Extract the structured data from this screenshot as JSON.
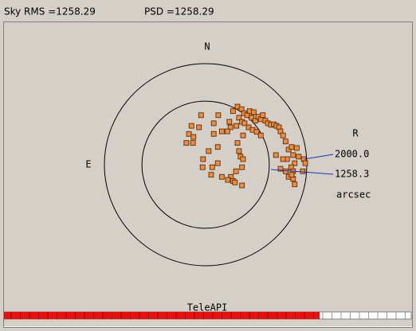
{
  "header": {
    "sky_rms": "Sky RMS =1258.29",
    "psd": "PSD =1258.29"
  },
  "plot": {
    "north": "N",
    "east": "E",
    "r_label": "R",
    "unit": "arcsec",
    "footer": "TeleAPI",
    "rings": [
      {
        "value": 2000,
        "label": "2000.0"
      },
      {
        "value": 1258.3,
        "label": "1258.3"
      }
    ],
    "points": {
      "x": [
        630,
        710,
        540,
        760,
        820,
        870,
        950,
        910,
        980,
        1040,
        1090,
        1130,
        1180,
        1230,
        1290,
        1350,
        1400,
        1450,
        1480,
        660,
        720,
        610,
        770,
        850,
        930,
        1010,
        1090,
        470,
        490,
        430,
        740,
        630,
        660,
        690,
        740,
        720,
        600,
        500,
        440,
        540,
        720,
        580,
        320,
        110,
        240,
        130,
        -50,
        -60,
        60,
        160,
        250,
        320,
        160,
        -130,
        -280,
        -330,
        -240,
        -380,
        -250,
        -90,
        240,
        1530,
        1580,
        1640,
        1700,
        1730,
        1800,
        1840,
        1760,
        1690,
        1610,
        1530,
        1480,
        1580,
        1640,
        1730,
        1760,
        1730,
        1920,
        1940,
        1970,
        1390,
        1700
      ],
      "y": [
        1150,
        1100,
        1060,
        1020,
        980,
        1060,
        1040,
        930,
        870,
        950,
        900,
        980,
        870,
        820,
        790,
        800,
        770,
        740,
        660,
        930,
        850,
        770,
        820,
        740,
        690,
        650,
        580,
        850,
        740,
        660,
        580,
        430,
        270,
        160,
        110,
        -50,
        -130,
        -240,
        -300,
        -320,
        -410,
        -350,
        -240,
        -200,
        30,
        -50,
        110,
        -50,
        270,
        820,
        980,
        660,
        610,
        740,
        770,
        610,
        550,
        430,
        430,
        980,
        350,
        580,
        460,
        300,
        350,
        190,
        330,
        160,
        30,
        -50,
        110,
        110,
        -80,
        -130,
        -240,
        -280,
        -390,
        -130,
        -130,
        110,
        30,
        190,
        -200
      ]
    }
  }
}
